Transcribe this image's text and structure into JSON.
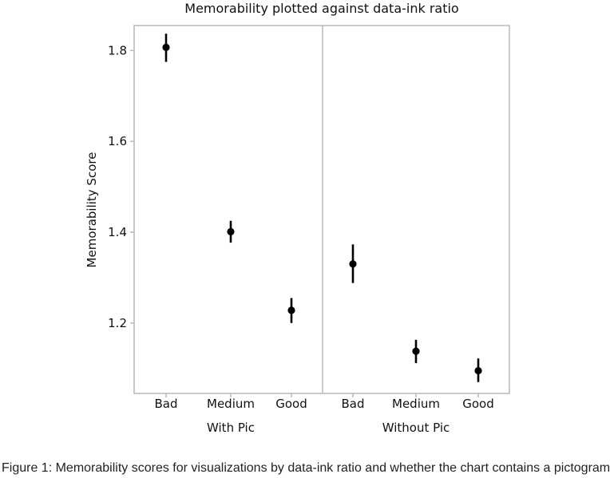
{
  "chart_data": {
    "type": "scatter",
    "title": "Memorability plotted against data-ink ratio",
    "xlabel": "",
    "ylabel": "Memorability Score",
    "ylim": [
      1.045,
      1.855
    ],
    "yticks": [
      "1.2",
      "1.4",
      "1.6",
      "1.8"
    ],
    "grid": false,
    "panels": [
      {
        "name": "With Pic",
        "categories": [
          "Bad",
          "Medium",
          "Good"
        ],
        "values": [
          1.807,
          1.401,
          1.228
        ],
        "error_low": [
          1.775,
          1.377,
          1.2
        ],
        "error_high": [
          1.837,
          1.425,
          1.255
        ]
      },
      {
        "name": "Without Pic",
        "categories": [
          "Bad",
          "Medium",
          "Good"
        ],
        "values": [
          1.33,
          1.138,
          1.095
        ],
        "error_low": [
          1.288,
          1.112,
          1.07
        ],
        "error_high": [
          1.373,
          1.163,
          1.122
        ]
      }
    ],
    "colors": {
      "marker": "#000000",
      "frame": "#b8b8b8",
      "text": "#111111"
    }
  },
  "caption": "Figure 1: Memorability scores for visualizations by data-ink ratio and whether the chart contains a pictogram"
}
